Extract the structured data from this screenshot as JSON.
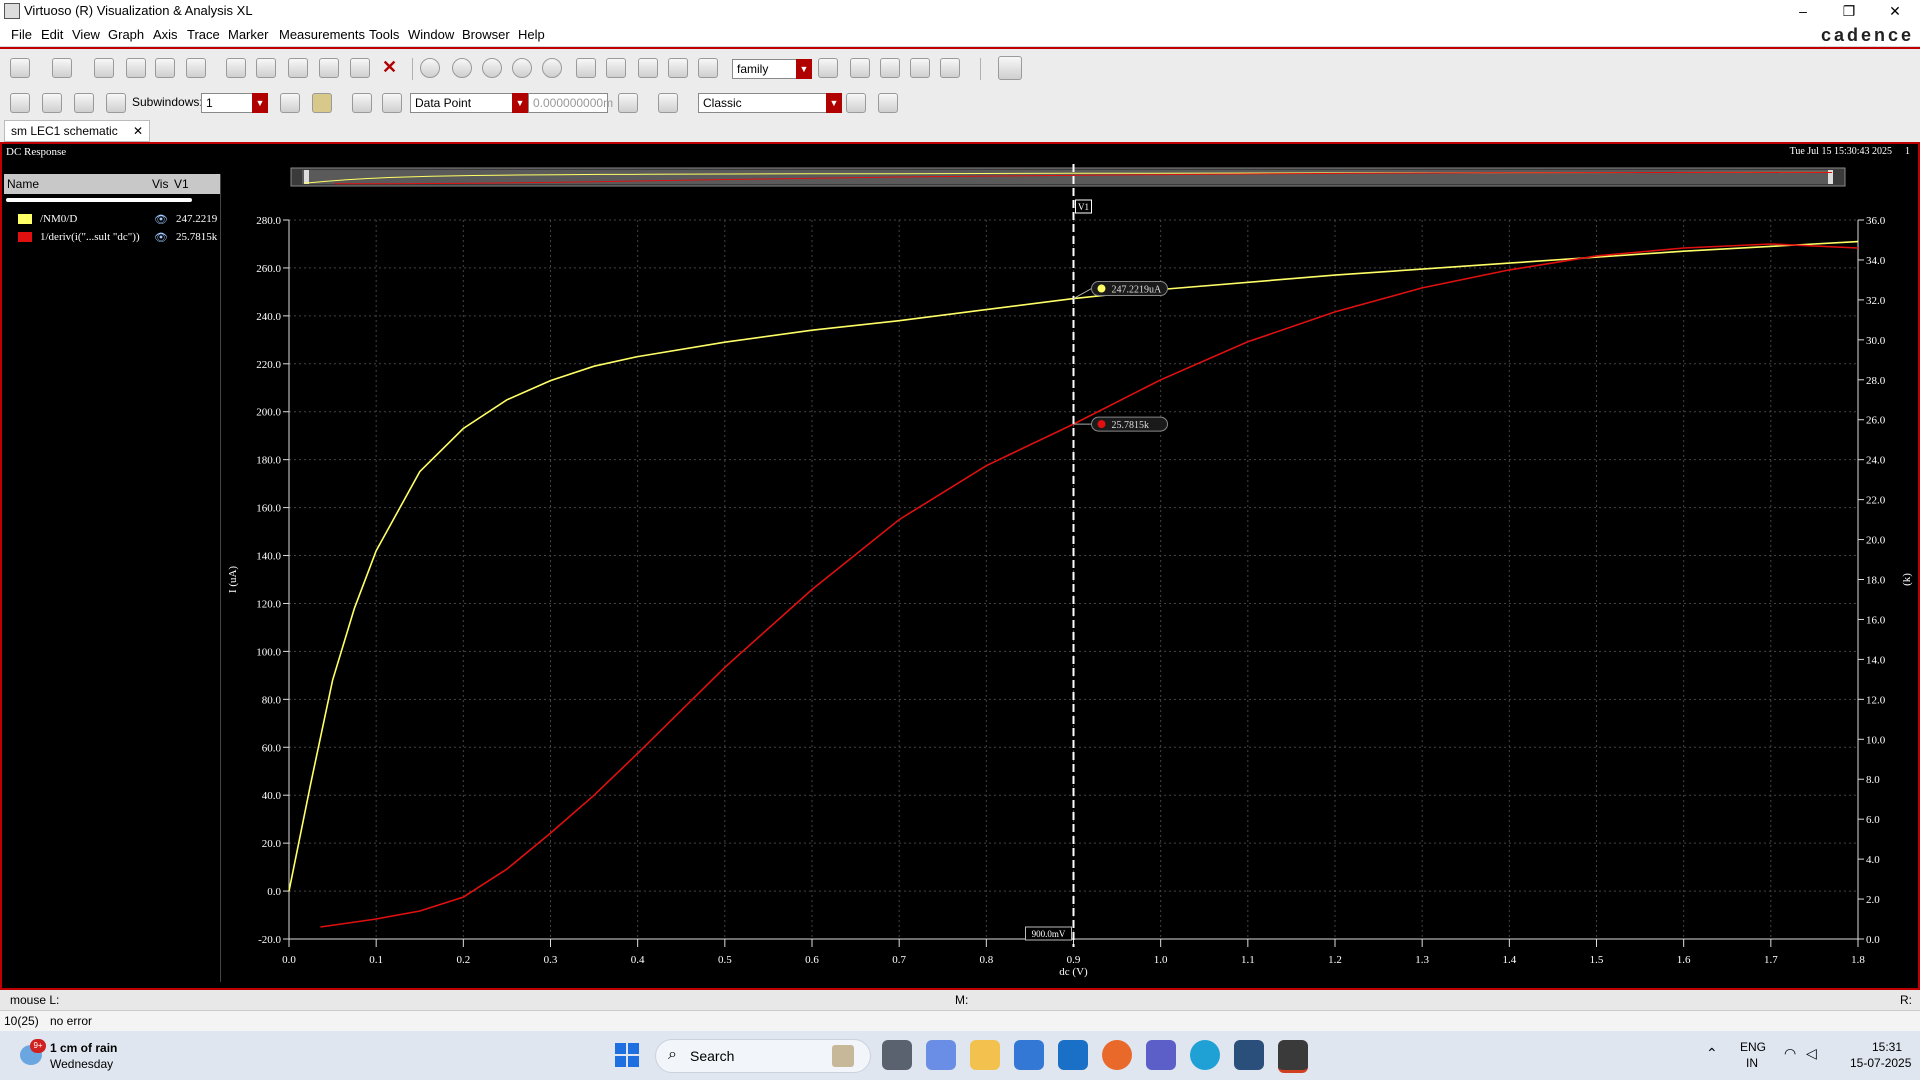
{
  "window": {
    "title": "Virtuoso (R) Visualization & Analysis XL",
    "logo": "cadence",
    "controls": [
      "–",
      "❐",
      "✕"
    ]
  },
  "menus": [
    "File",
    "Edit",
    "View",
    "Graph",
    "Axis",
    "Trace",
    "Marker",
    "Measurements",
    "Tools",
    "Window",
    "Browser",
    "Help"
  ],
  "toolbar1": {
    "family_combo": "family"
  },
  "toolbar2": {
    "subwindows_label": "Subwindows:",
    "subwindows_value": "1",
    "data_point_combo": "Data Point",
    "position_field": "0.000000000m",
    "style_combo": "Classic"
  },
  "tab": {
    "label": "sm LEC1 schematic",
    "close": "✕"
  },
  "plot": {
    "title": "DC Response",
    "timestamp": "Tue Jul 15 15:30:43 2025",
    "subwindow_index": "1",
    "marker_label": "V1",
    "marker_x_readout": "900.0mV",
    "marker_values": [
      "247.2219uA",
      "25.7815k"
    ],
    "colors": {
      "trace1": "#ffff66",
      "trace2": "#e01010",
      "background": "#000000",
      "marker": "#ffffff"
    }
  },
  "legend": {
    "headers": [
      "Name",
      "Vis",
      "V1"
    ],
    "traces": [
      {
        "name": "/NM0/D",
        "value": "247.2219",
        "color": "#ffff66",
        "icon": "eye-icon"
      },
      {
        "name": "1/deriv(i(\"...sult \"dc\"))",
        "value": "25.7815k",
        "color": "#e01010",
        "icon": "eye-icon"
      }
    ]
  },
  "chart_data": {
    "type": "line",
    "title": "DC Response",
    "xlabel": "dc (V)",
    "ylabel_left": "I (uA)",
    "ylabel_right": "(k)",
    "xlim": [
      0.0,
      1.8
    ],
    "ylim_left": [
      -20.0,
      280.0
    ],
    "ylim_right": [
      0.0,
      36.0
    ],
    "x_ticks": [
      "0.0",
      "0.1",
      "0.2",
      "0.3",
      "0.4",
      "0.5",
      "0.6",
      "0.7",
      "0.8",
      "0.9",
      "1.0",
      "1.1",
      "1.2",
      "1.3",
      "1.4",
      "1.5",
      "1.6",
      "1.7",
      "1.8"
    ],
    "y_left_ticks": [
      "280.0",
      "260.0",
      "240.0",
      "220.0",
      "200.0",
      "180.0",
      "160.0",
      "140.0",
      "120.0",
      "100.0",
      "80.0",
      "60.0",
      "40.0",
      "20.0",
      "0.0",
      "-20.0"
    ],
    "y_right_ticks": [
      "36.0",
      "34.0",
      "32.0",
      "30.0",
      "28.0",
      "26.0",
      "24.0",
      "22.0",
      "20.0",
      "18.0",
      "16.0",
      "14.0",
      "12.0",
      "10.0",
      "8.0",
      "6.0",
      "4.0",
      "2.0",
      "0.0"
    ],
    "grid": true,
    "marker_x": 0.9,
    "series": [
      {
        "name": "/NM0/D",
        "axis": "left",
        "x": [
          0.0,
          0.025,
          0.05,
          0.075,
          0.1,
          0.15,
          0.2,
          0.25,
          0.3,
          0.35,
          0.4,
          0.5,
          0.6,
          0.7,
          0.8,
          0.9,
          1.0,
          1.2,
          1.4,
          1.6,
          1.8
        ],
        "y": [
          0.0,
          45.0,
          88.0,
          118.0,
          142.0,
          175.0,
          193.0,
          205.0,
          213.0,
          219.0,
          223.0,
          229.0,
          234.0,
          238.0,
          242.6,
          247.2,
          251.0,
          257.0,
          262.0,
          267.0,
          271.0
        ]
      },
      {
        "name": "1/deriv(i(\"...sult \"dc\"))",
        "axis": "right",
        "x": [
          0.036,
          0.1,
          0.15,
          0.2,
          0.25,
          0.3,
          0.35,
          0.4,
          0.5,
          0.6,
          0.7,
          0.8,
          0.9,
          1.0,
          1.1,
          1.2,
          1.3,
          1.4,
          1.5,
          1.6,
          1.7,
          1.8
        ],
        "y": [
          0.6,
          1.0,
          1.4,
          2.1,
          3.5,
          5.3,
          7.2,
          9.3,
          13.6,
          17.5,
          21.0,
          23.7,
          25.78,
          28.0,
          29.9,
          31.4,
          32.6,
          33.5,
          34.2,
          34.6,
          34.8,
          34.6
        ]
      }
    ]
  },
  "status": {
    "mouse_l": "mouse L:",
    "mouse_m": "M:",
    "mouse_r": "R:",
    "counter": "10(25)",
    "message": "no error"
  },
  "taskbar": {
    "weather": "1 cm of rain",
    "weather_day": "Wednesday",
    "weather_badge": "9+",
    "search": "Search",
    "lang": "ENG",
    "region": "IN",
    "time": "15:31",
    "date": "15-07-2025"
  }
}
